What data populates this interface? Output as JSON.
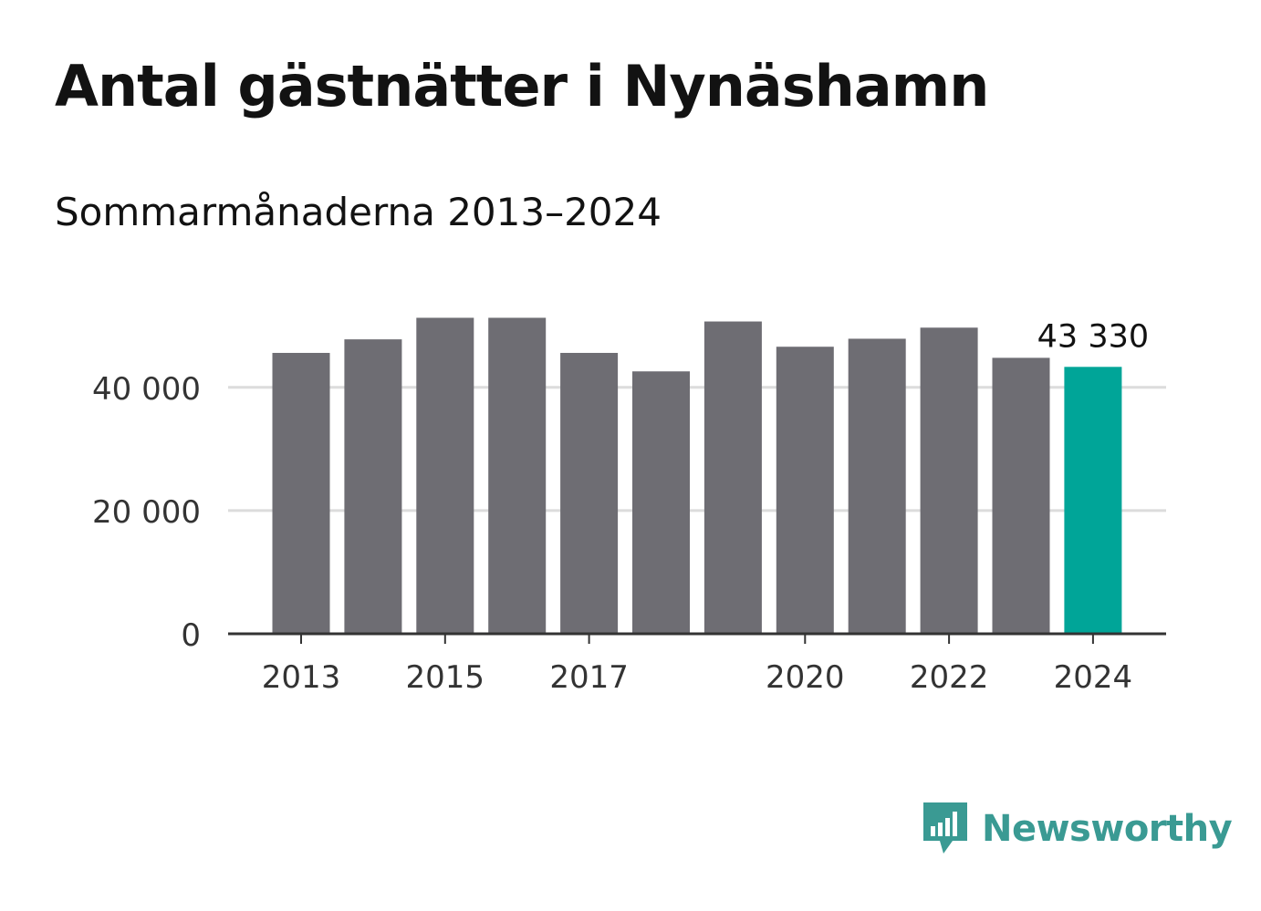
{
  "chart_data": {
    "type": "bar",
    "title": "Antal gästnätter i Nynäshamn",
    "subtitle": "Sommarmånaderna 2013–2024",
    "xlabel": "",
    "ylabel": "",
    "categories": [
      "2013",
      "2014",
      "2015",
      "2016",
      "2017",
      "2018",
      "2019",
      "2020",
      "2021",
      "2022",
      "2023",
      "2024"
    ],
    "x_tick_labels": [
      "2013",
      "2015",
      "2017",
      "2020",
      "2022",
      "2024"
    ],
    "values": [
      45600,
      47800,
      51300,
      51300,
      45600,
      42600,
      50700,
      46600,
      47900,
      49700,
      44800,
      43330
    ],
    "ylim": [
      0,
      53000
    ],
    "y_ticks": [
      0,
      20000,
      40000
    ],
    "y_tick_labels": [
      "0",
      "20 000",
      "40 000"
    ],
    "grid": true,
    "highlight": {
      "category": "2024",
      "label": "43 330"
    },
    "colors": {
      "bar": "#6e6d73",
      "highlight": "#00a598",
      "grid": "#dcdcdc",
      "axis": "#333333",
      "text": "#121212",
      "tick_text": "#333333"
    }
  },
  "brand": {
    "name": "Newsworthy",
    "icon": "newsworthy-logo-icon",
    "color": "#3a9a93"
  }
}
